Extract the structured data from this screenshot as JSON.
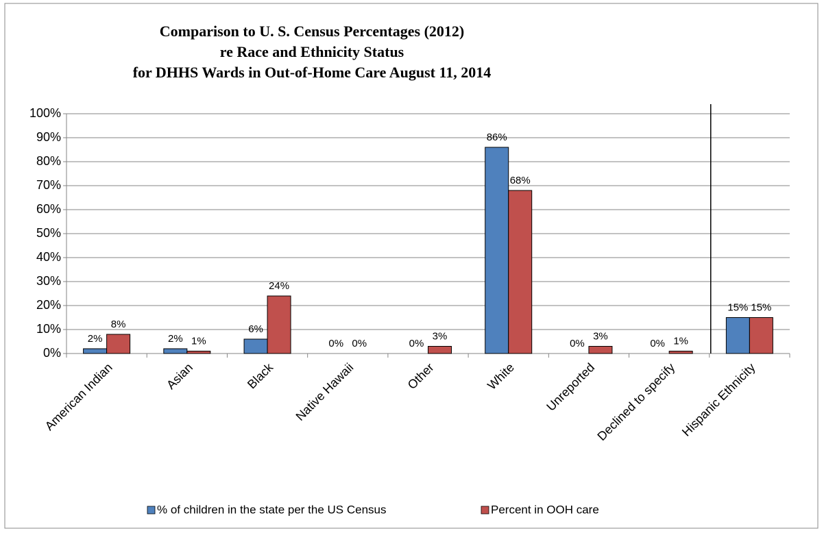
{
  "chart_data": {
    "type": "bar",
    "title": [
      "Comparison to U. S. Census Percentages (2012)",
      "re Race and Ethnicity Status",
      "for DHHS Wards in Out-of-Home Care August 11, 2014"
    ],
    "categories": [
      "American Indian",
      "Asian",
      "Black",
      "Native Hawaii",
      "Other",
      "White",
      "Unreported",
      "Declined to specify",
      "Hispanic Ethnicity"
    ],
    "series": [
      {
        "name": "% of children in the state per the US Census",
        "color": "#4f81bd",
        "values": [
          2,
          2,
          6,
          0,
          0,
          86,
          0,
          0,
          15
        ],
        "value_labels": [
          "2%",
          "2%",
          "6%",
          "0%",
          "0%",
          "86%",
          "0%",
          "0%",
          "15%"
        ]
      },
      {
        "name": "Percent in OOH care",
        "color": "#c0504d",
        "values": [
          8,
          1,
          24,
          0,
          3,
          68,
          3,
          1,
          15
        ],
        "value_labels": [
          "8%",
          "1%",
          "24%",
          "0%",
          "3%",
          "68%",
          "3%",
          "1%",
          "15%"
        ]
      }
    ],
    "ylim": [
      0,
      100
    ],
    "yticks": [
      {
        "value": 0,
        "label": "0%"
      },
      {
        "value": 10,
        "label": "10%"
      },
      {
        "value": 20,
        "label": "20%"
      },
      {
        "value": 30,
        "label": "30%"
      },
      {
        "value": 40,
        "label": "40%"
      },
      {
        "value": 50,
        "label": "50%"
      },
      {
        "value": 60,
        "label": "60%"
      },
      {
        "value": 70,
        "label": "70%"
      },
      {
        "value": 80,
        "label": "80%"
      },
      {
        "value": 90,
        "label": "90%"
      },
      {
        "value": 100,
        "label": "100%"
      }
    ],
    "grid": true,
    "legend": "bottom"
  }
}
